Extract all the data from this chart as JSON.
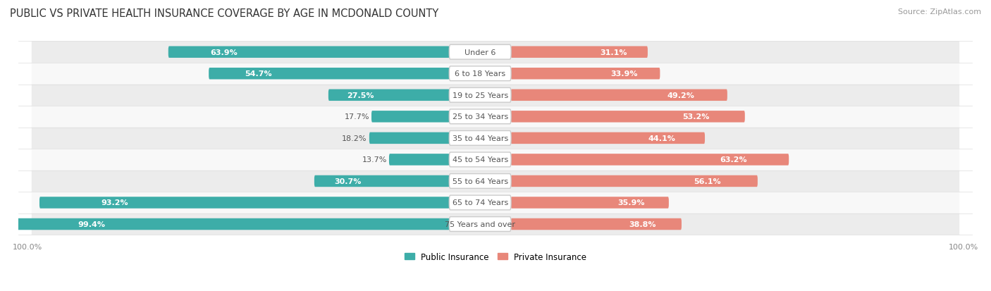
{
  "title": "PUBLIC VS PRIVATE HEALTH INSURANCE COVERAGE BY AGE IN MCDONALD COUNTY",
  "source": "Source: ZipAtlas.com",
  "categories": [
    "Under 6",
    "6 to 18 Years",
    "19 to 25 Years",
    "25 to 34 Years",
    "35 to 44 Years",
    "45 to 54 Years",
    "55 to 64 Years",
    "65 to 74 Years",
    "75 Years and over"
  ],
  "public_values": [
    63.9,
    54.7,
    27.5,
    17.7,
    18.2,
    13.7,
    30.7,
    93.2,
    99.4
  ],
  "private_values": [
    31.1,
    33.9,
    49.2,
    53.2,
    44.1,
    63.2,
    56.1,
    35.9,
    38.8
  ],
  "public_color": "#3DADA8",
  "private_color": "#E8877A",
  "row_bg_even": "#ECECEC",
  "row_bg_odd": "#F8F8F8",
  "bar_height": 0.52,
  "scale": 100,
  "title_fontsize": 10.5,
  "label_fontsize": 8.0,
  "value_fontsize": 8.0,
  "tick_fontsize": 8,
  "source_fontsize": 8,
  "legend_fontsize": 8.5,
  "inside_label_threshold": 25
}
